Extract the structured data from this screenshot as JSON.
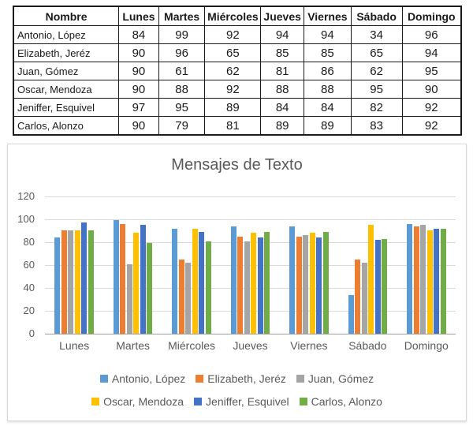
{
  "table": {
    "headers": [
      "Nombre",
      "Lunes",
      "Martes",
      "Miércoles",
      "Jueves",
      "Viernes",
      "Sábado",
      "Domingo"
    ],
    "rows": [
      {
        "name": "Antonio, López",
        "values": [
          84,
          99,
          92,
          94,
          94,
          34,
          96
        ]
      },
      {
        "name": "Elizabeth, Jeréz",
        "values": [
          90,
          96,
          65,
          85,
          85,
          65,
          94
        ]
      },
      {
        "name": "Juan, Gómez",
        "values": [
          90,
          61,
          62,
          81,
          86,
          62,
          95
        ]
      },
      {
        "name": "Oscar, Mendoza",
        "values": [
          90,
          88,
          92,
          88,
          88,
          95,
          90
        ]
      },
      {
        "name": "Jeniffer, Esquivel",
        "values": [
          97,
          95,
          89,
          84,
          84,
          82,
          92
        ]
      },
      {
        "name": "Carlos, Alonzo",
        "values": [
          90,
          79,
          81,
          89,
          89,
          83,
          92
        ]
      }
    ]
  },
  "chart_data": {
    "type": "bar",
    "title": "Mensajes de Texto",
    "categories": [
      "Lunes",
      "Martes",
      "Miércoles",
      "Jueves",
      "Viernes",
      "Sábado",
      "Domingo"
    ],
    "series": [
      {
        "name": "Antonio, López",
        "color": "#5B9BD5",
        "values": [
          84,
          99,
          92,
          94,
          94,
          34,
          96
        ]
      },
      {
        "name": "Elizabeth, Jeréz",
        "color": "#ED7D31",
        "values": [
          90,
          96,
          65,
          85,
          85,
          65,
          94
        ]
      },
      {
        "name": "Juan, Gómez",
        "color": "#A5A5A5",
        "values": [
          90,
          61,
          62,
          81,
          86,
          62,
          95
        ]
      },
      {
        "name": "Oscar, Mendoza",
        "color": "#FFC000",
        "values": [
          90,
          88,
          92,
          88,
          88,
          95,
          90
        ]
      },
      {
        "name": "Jeniffer, Esquivel",
        "color": "#4472C4",
        "values": [
          97,
          95,
          89,
          84,
          84,
          82,
          92
        ]
      },
      {
        "name": "Carlos, Alonzo",
        "color": "#70AD47",
        "values": [
          90,
          79,
          81,
          89,
          89,
          83,
          92
        ]
      }
    ],
    "ylim": [
      0,
      120
    ],
    "yticks": [
      0,
      20,
      40,
      60,
      80,
      100,
      120
    ],
    "grid": true,
    "legend_position": "bottom"
  }
}
